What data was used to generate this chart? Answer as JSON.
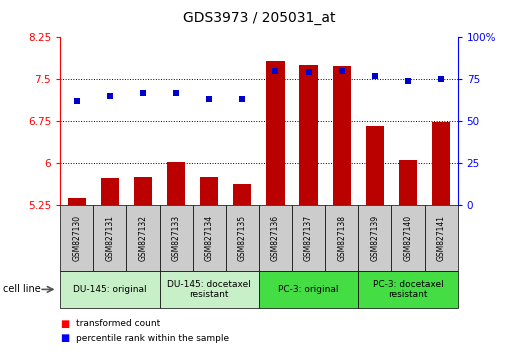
{
  "title": "GDS3973 / 205031_at",
  "samples": [
    "GSM827130",
    "GSM827131",
    "GSM827132",
    "GSM827133",
    "GSM827134",
    "GSM827135",
    "GSM827136",
    "GSM827137",
    "GSM827138",
    "GSM827139",
    "GSM827140",
    "GSM827141"
  ],
  "red_values": [
    5.38,
    5.73,
    5.76,
    6.02,
    5.76,
    5.63,
    7.82,
    7.76,
    7.74,
    6.67,
    6.05,
    6.73
  ],
  "blue_values": [
    62,
    65,
    67,
    67,
    63,
    63,
    80,
    79,
    80,
    77,
    74,
    75
  ],
  "ylim_left": [
    5.25,
    8.25
  ],
  "ylim_right": [
    0,
    100
  ],
  "yticks_left": [
    5.25,
    6.0,
    6.75,
    7.5,
    8.25
  ],
  "yticks_right": [
    0,
    25,
    50,
    75,
    100
  ],
  "ytick_labels_left": [
    "5.25",
    "6",
    "6.75",
    "7.5",
    "8.25"
  ],
  "ytick_labels_right": [
    "0",
    "25",
    "50",
    "75",
    "100%"
  ],
  "hlines": [
    6.0,
    6.75,
    7.5
  ],
  "cell_line_groups": [
    {
      "label": "DU-145: original",
      "start": 0,
      "end": 3,
      "color": "#c8f0c8"
    },
    {
      "label": "DU-145: docetaxel\nresistant",
      "start": 3,
      "end": 6,
      "color": "#c8f0c8"
    },
    {
      "label": "PC-3: original",
      "start": 6,
      "end": 9,
      "color": "#44dd44"
    },
    {
      "label": "PC-3: docetaxel\nresistant",
      "start": 9,
      "end": 12,
      "color": "#44dd44"
    }
  ],
  "red_color": "#bb0000",
  "blue_color": "#0000cc",
  "bar_width": 0.55,
  "cell_line_label": "cell line",
  "legend_red": "transformed count",
  "legend_blue": "percentile rank within the sample",
  "sample_box_color": "#cccccc",
  "title_fontsize": 10,
  "tick_fontsize": 7.5,
  "label_fontsize": 7,
  "sample_fontsize": 5.5,
  "cell_label_fontsize": 6.5,
  "n_samples": 12
}
